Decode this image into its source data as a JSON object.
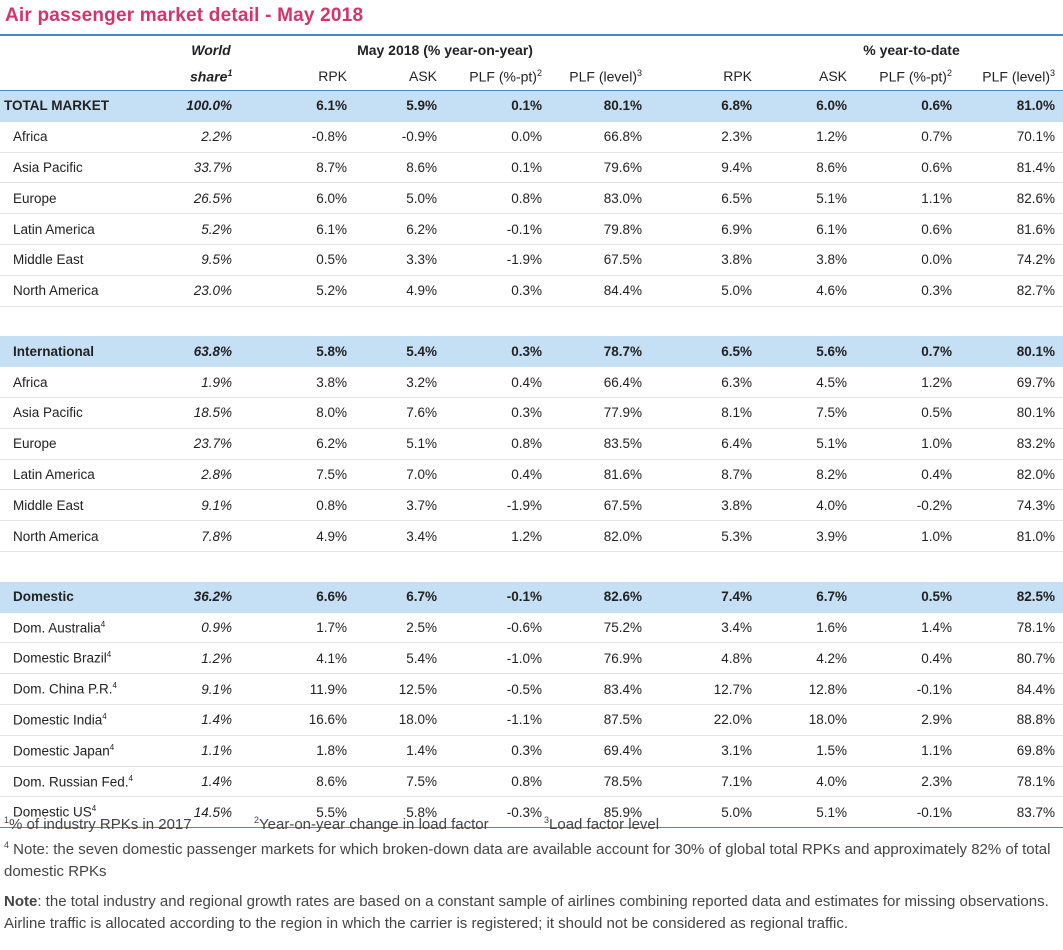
{
  "title": "Air passenger market detail - May 2018",
  "header": {
    "world": "World",
    "share": "share",
    "share_sup": "1",
    "group_yoy": "May 2018 (% year-on-year)",
    "group_ytd": "% year-to-date",
    "rpk": "RPK",
    "ask": "ASK",
    "plf_pt": "PLF (%-pt)",
    "plf_pt_sup": "2",
    "plf_level": "PLF (level)",
    "plf_level_sup": "3"
  },
  "rows": [
    {
      "type": "section",
      "label": "TOTAL MARKET",
      "share": "100.0%",
      "values": [
        "6.1%",
        "5.9%",
        "0.1%",
        "80.1%",
        "6.8%",
        "6.0%",
        "0.6%",
        "81.0%"
      ]
    },
    {
      "type": "row",
      "label": "Africa",
      "share": "2.2%",
      "values": [
        "-0.8%",
        "-0.9%",
        "0.0%",
        "66.8%",
        "2.3%",
        "1.2%",
        "0.7%",
        "70.1%"
      ]
    },
    {
      "type": "row",
      "label": "Asia Pacific",
      "share": "33.7%",
      "values": [
        "8.7%",
        "8.6%",
        "0.1%",
        "79.6%",
        "9.4%",
        "8.6%",
        "0.6%",
        "81.4%"
      ]
    },
    {
      "type": "row",
      "label": "Europe",
      "share": "26.5%",
      "values": [
        "6.0%",
        "5.0%",
        "0.8%",
        "83.0%",
        "6.5%",
        "5.1%",
        "1.1%",
        "82.6%"
      ]
    },
    {
      "type": "row",
      "label": "Latin America",
      "share": "5.2%",
      "values": [
        "6.1%",
        "6.2%",
        "-0.1%",
        "79.8%",
        "6.9%",
        "6.1%",
        "0.6%",
        "81.6%"
      ]
    },
    {
      "type": "row",
      "label": "Middle East",
      "share": "9.5%",
      "values": [
        "0.5%",
        "3.3%",
        "-1.9%",
        "67.5%",
        "3.8%",
        "3.8%",
        "0.0%",
        "74.2%"
      ]
    },
    {
      "type": "row",
      "label": "North America",
      "share": "23.0%",
      "values": [
        "5.2%",
        "4.9%",
        "0.3%",
        "84.4%",
        "5.0%",
        "4.6%",
        "0.3%",
        "82.7%"
      ]
    },
    {
      "type": "gap"
    },
    {
      "type": "section",
      "indent": true,
      "label": "International",
      "share": "63.8%",
      "values": [
        "5.8%",
        "5.4%",
        "0.3%",
        "78.7%",
        "6.5%",
        "5.6%",
        "0.7%",
        "80.1%"
      ]
    },
    {
      "type": "row",
      "label": "Africa",
      "share": "1.9%",
      "values": [
        "3.8%",
        "3.2%",
        "0.4%",
        "66.4%",
        "6.3%",
        "4.5%",
        "1.2%",
        "69.7%"
      ]
    },
    {
      "type": "row",
      "label": "Asia Pacific",
      "share": "18.5%",
      "values": [
        "8.0%",
        "7.6%",
        "0.3%",
        "77.9%",
        "8.1%",
        "7.5%",
        "0.5%",
        "80.1%"
      ]
    },
    {
      "type": "row",
      "label": "Europe",
      "share": "23.7%",
      "values": [
        "6.2%",
        "5.1%",
        "0.8%",
        "83.5%",
        "6.4%",
        "5.1%",
        "1.0%",
        "83.2%"
      ]
    },
    {
      "type": "row",
      "label": "Latin America",
      "share": "2.8%",
      "values": [
        "7.5%",
        "7.0%",
        "0.4%",
        "81.6%",
        "8.7%",
        "8.2%",
        "0.4%",
        "82.0%"
      ]
    },
    {
      "type": "row",
      "label": "Middle East",
      "share": "9.1%",
      "values": [
        "0.8%",
        "3.7%",
        "-1.9%",
        "67.5%",
        "3.8%",
        "4.0%",
        "-0.2%",
        "74.3%"
      ]
    },
    {
      "type": "row",
      "label": "North America",
      "share": "7.8%",
      "values": [
        "4.9%",
        "3.4%",
        "1.2%",
        "82.0%",
        "5.3%",
        "3.9%",
        "1.0%",
        "81.0%"
      ]
    },
    {
      "type": "gap"
    },
    {
      "type": "section",
      "indent": true,
      "label": "Domestic",
      "share": "36.2%",
      "values": [
        "6.6%",
        "6.7%",
        "-0.1%",
        "82.6%",
        "7.4%",
        "6.7%",
        "0.5%",
        "82.5%"
      ]
    },
    {
      "type": "row",
      "label": "Dom. Australia",
      "sup": "4",
      "share": "0.9%",
      "values": [
        "1.7%",
        "2.5%",
        "-0.6%",
        "75.2%",
        "3.4%",
        "1.6%",
        "1.4%",
        "78.1%"
      ]
    },
    {
      "type": "row",
      "label": "Domestic Brazil",
      "sup": "4",
      "share": "1.2%",
      "values": [
        "4.1%",
        "5.4%",
        "-1.0%",
        "76.9%",
        "4.8%",
        "4.2%",
        "0.4%",
        "80.7%"
      ]
    },
    {
      "type": "row",
      "label": "Dom. China P.R.",
      "sup": "4",
      "share": "9.1%",
      "values": [
        "11.9%",
        "12.5%",
        "-0.5%",
        "83.4%",
        "12.7%",
        "12.8%",
        "-0.1%",
        "84.4%"
      ]
    },
    {
      "type": "row",
      "label": "Domestic India",
      "sup": "4",
      "share": "1.4%",
      "values": [
        "16.6%",
        "18.0%",
        "-1.1%",
        "87.5%",
        "22.0%",
        "18.0%",
        "2.9%",
        "88.8%"
      ]
    },
    {
      "type": "row",
      "label": "Domestic Japan",
      "sup": "4",
      "share": "1.1%",
      "values": [
        "1.8%",
        "1.4%",
        "0.3%",
        "69.4%",
        "3.1%",
        "1.5%",
        "1.1%",
        "69.8%"
      ]
    },
    {
      "type": "row",
      "label": "Dom. Russian Fed.",
      "sup": "4",
      "share": "1.4%",
      "values": [
        "8.6%",
        "7.5%",
        "0.8%",
        "78.5%",
        "7.1%",
        "4.0%",
        "2.3%",
        "78.1%"
      ]
    },
    {
      "type": "row",
      "label": "Domestic US",
      "sup": "4",
      "share": "14.5%",
      "values": [
        "5.5%",
        "5.8%",
        "-0.3%",
        "85.9%",
        "5.0%",
        "5.1%",
        "-0.1%",
        "83.7%"
      ]
    }
  ],
  "footnotes": {
    "fn1_sup": "1",
    "fn1": "% of industry RPKs in 2017",
    "fn2_sup": "2",
    "fn2": "Year-on-year change in load factor",
    "fn3_sup": "3",
    "fn3": "Load factor level",
    "fn4_sup": "4",
    "fn4": " Note: the seven domestic passenger markets for which broken-down data are available account for 30% of global total RPKs and approximately 82% of total domestic RPKs",
    "note_label": "Note",
    "note_text": ": the total industry and regional growth rates are based on a constant sample of airlines combining reported data and estimates for missing observations. Airline traffic is allocated according to the region in which the carrier is registered; it should not be considered as regional traffic."
  }
}
